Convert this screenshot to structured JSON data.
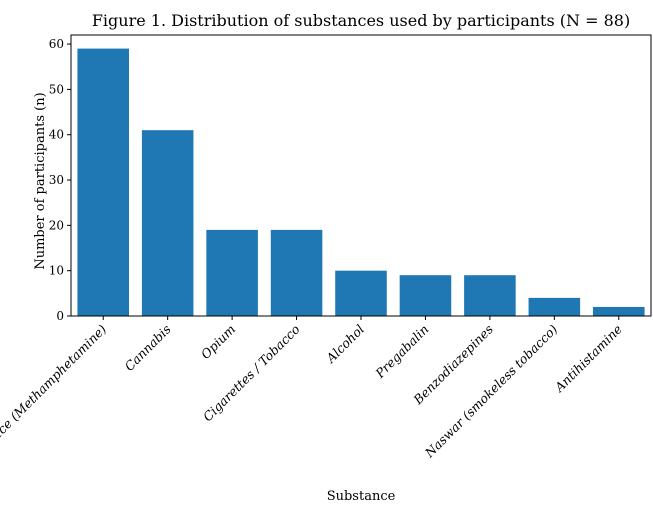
{
  "chart_data": {
    "type": "bar",
    "title": "Figure 1. Distribution of substances used by participants (N = 88)",
    "xlabel": "Substance",
    "ylabel": "Number of participants (n)",
    "categories": [
      "Ice (Methamphetamine)",
      "Cannabis",
      "Opium",
      "Cigarettes / Tobacco",
      "Alcohol",
      "Pregabalin",
      "Benzodiazepines",
      "Naswar (smokeless tobacco)",
      "Antihistamine"
    ],
    "values": [
      59,
      41,
      19,
      19,
      10,
      9,
      9,
      4,
      2
    ],
    "ylim": [
      0,
      62
    ],
    "yticks": [
      0,
      10,
      20,
      30,
      40,
      50,
      60
    ],
    "grid": false,
    "legend": "none",
    "bar_color": "#1f77b4"
  }
}
